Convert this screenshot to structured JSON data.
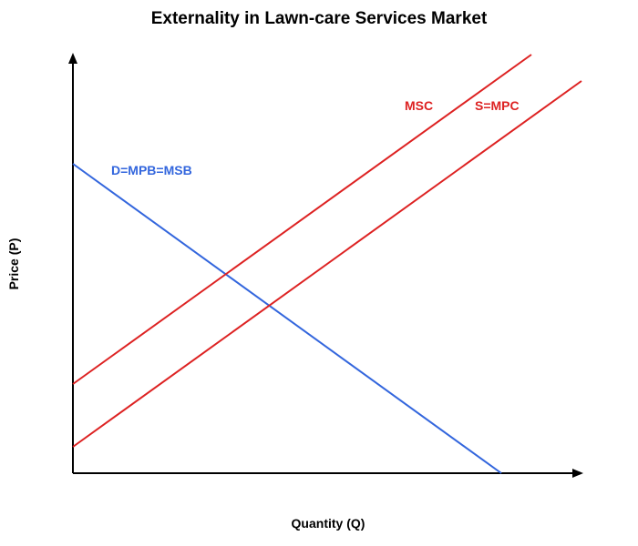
{
  "title": "Externality in Lawn-care Services Market",
  "x_axis_label": "Quantity (Q)",
  "y_axis_label": "Price (P)",
  "colors": {
    "demand": "#3366dd",
    "supply": "#dd2222",
    "axis": "#000000"
  },
  "curves": {
    "demand": {
      "label": "D=MPB=MSB"
    },
    "msc": {
      "label": "MSC"
    },
    "supply": {
      "label": "S=MPC"
    }
  }
}
